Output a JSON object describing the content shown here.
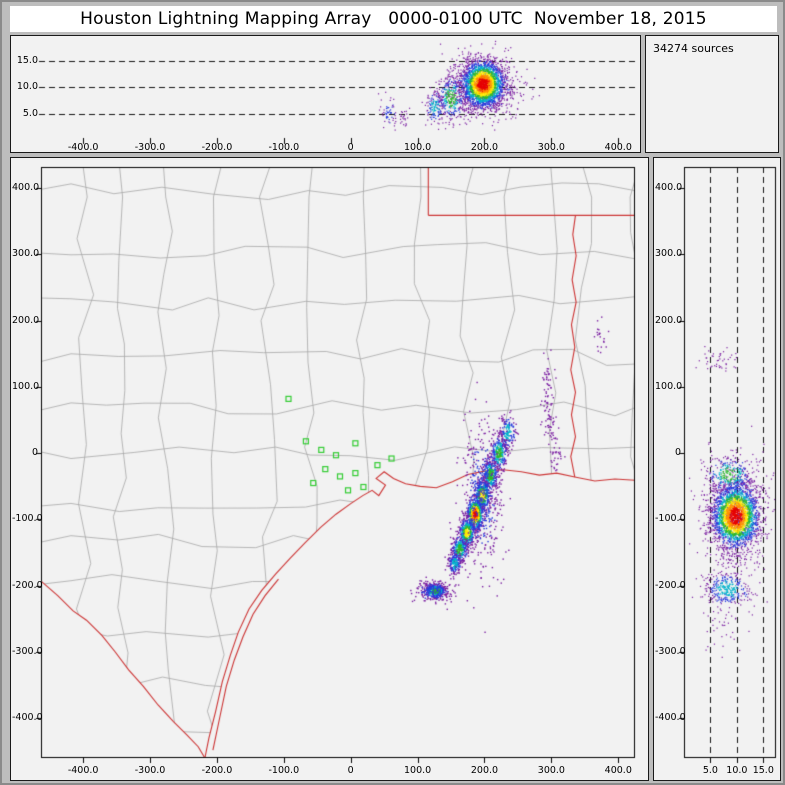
{
  "title": "Houston Lightning Mapping Array   0000-0100 UTC  November 18, 2015",
  "sources_label": "34274 sources",
  "colors": {
    "frame_bg": "#bdbdbd",
    "panel_bg": "#f2f2f2",
    "panel_border": "#1a1a1a",
    "grid_dash": "#111111",
    "county_line": "#a6a6a6",
    "state_line": "#cc3333",
    "station": "#33cc33",
    "tick_text": "#000000",
    "density_levels": [
      "#7b1fa2",
      "#2a3bdd",
      "#00b2cc",
      "#2db82d",
      "#ffeb00",
      "#ff9100",
      "#e60000"
    ]
  },
  "chart_data": [
    {
      "id": "altitude_vs_ew",
      "type": "scatter",
      "title": "",
      "x_range": [
        -463,
        425
      ],
      "y_range": [
        0,
        19
      ],
      "gridlines": [
        5,
        10,
        15
      ],
      "x_ticks": [
        {
          "v": -400,
          "label": "-400.0"
        },
        {
          "v": -300,
          "label": "-300.0"
        },
        {
          "v": -200,
          "label": "-200.0"
        },
        {
          "v": -100,
          "label": "-100.0"
        },
        {
          "v": 0,
          "label": "0"
        },
        {
          "v": 100,
          "label": "100.0"
        },
        {
          "v": 200,
          "label": "200.0"
        },
        {
          "v": 300,
          "label": "300.0"
        },
        {
          "v": 400,
          "label": "400.0"
        }
      ],
      "y_ticks": [
        {
          "v": 15,
          "label": "15.0"
        },
        {
          "v": 10,
          "label": "10.0"
        },
        {
          "v": 5,
          "label": "5.0"
        }
      ],
      "clusters": [
        {
          "x": 197,
          "y": 10.2,
          "sx": 28,
          "sy": 3.0,
          "n": 750,
          "peak": "blue"
        },
        {
          "x": 198,
          "y": 10.6,
          "sx": 16,
          "sy": 2.2,
          "n": 2300,
          "peak": "red"
        },
        {
          "x": 150,
          "y": 8.0,
          "sx": 10,
          "sy": 2.0,
          "n": 300,
          "peak": "green"
        },
        {
          "x": 126,
          "y": 6.2,
          "sx": 7,
          "sy": 1.6,
          "n": 130,
          "peak": "cyan"
        },
        {
          "x": 58,
          "y": 5.2,
          "sx": 7,
          "sy": 1.5,
          "n": 55,
          "peak": "blue"
        },
        {
          "x": 80,
          "y": 4.4,
          "sx": 4,
          "sy": 1.0,
          "n": 22,
          "peak": "purple"
        }
      ]
    },
    {
      "id": "plan_view",
      "type": "scatter",
      "title": "",
      "x_range": [
        -463,
        425
      ],
      "y_range": [
        -460,
        432
      ],
      "x_ticks": [
        {
          "v": -400,
          "label": "-400.0"
        },
        {
          "v": -300,
          "label": "-300.0"
        },
        {
          "v": -200,
          "label": "-200.0"
        },
        {
          "v": -100,
          "label": "-100.0"
        },
        {
          "v": 0,
          "label": "0"
        },
        {
          "v": 100,
          "label": "100.0"
        },
        {
          "v": 200,
          "label": "200.0"
        },
        {
          "v": 300,
          "label": "300.0"
        },
        {
          "v": 400,
          "label": "400.0"
        }
      ],
      "y_ticks": [
        {
          "v": 400,
          "label": "400.0"
        },
        {
          "v": 300,
          "label": "300.0"
        },
        {
          "v": 200,
          "label": "200.0"
        },
        {
          "v": 100,
          "label": "100.0"
        },
        {
          "v": 0,
          "label": "0"
        },
        {
          "v": -100,
          "label": "-100.0"
        },
        {
          "v": -200,
          "label": "-200.0"
        },
        {
          "v": -300,
          "label": "-300.0"
        },
        {
          "v": -400,
          "label": "-400.0"
        }
      ],
      "stations": [
        [
          -93,
          82
        ],
        [
          -67,
          18
        ],
        [
          -44,
          5
        ],
        [
          -22,
          -3
        ],
        [
          -38,
          -24
        ],
        [
          -16,
          -35
        ],
        [
          7,
          -30
        ],
        [
          -56,
          -45
        ],
        [
          -4,
          -56
        ],
        [
          19,
          -51
        ],
        [
          40,
          -18
        ],
        [
          61,
          -8
        ],
        [
          7,
          15
        ]
      ],
      "clusters": [
        {
          "x": 235,
          "y": 30,
          "sx": 6,
          "sy": 14,
          "n": 160,
          "peak": "cyan"
        },
        {
          "x": 222,
          "y": 0,
          "sx": 6,
          "sy": 13,
          "n": 240,
          "peak": "green"
        },
        {
          "x": 209,
          "y": -33,
          "sx": 6,
          "sy": 13,
          "n": 300,
          "peak": "green"
        },
        {
          "x": 197,
          "y": -64,
          "sx": 6,
          "sy": 12,
          "n": 400,
          "peak": "yellow"
        },
        {
          "x": 186,
          "y": -92,
          "sx": 6,
          "sy": 12,
          "n": 520,
          "peak": "red"
        },
        {
          "x": 174,
          "y": -120,
          "sx": 6,
          "sy": 11,
          "n": 380,
          "peak": "yellow"
        },
        {
          "x": 163,
          "y": -145,
          "sx": 6,
          "sy": 10,
          "n": 250,
          "peak": "green"
        },
        {
          "x": 155,
          "y": -166,
          "sx": 5,
          "sy": 9,
          "n": 150,
          "peak": "cyan"
        },
        {
          "x": 196,
          "y": -66,
          "sx": 15,
          "sy": 58,
          "n": 420,
          "peak": "blue"
        },
        {
          "x": 127,
          "y": -207,
          "sx": 5,
          "sy": 4,
          "n": 120,
          "peak": "yellow"
        },
        {
          "x": 126,
          "y": -208,
          "sx": 9,
          "sy": 6,
          "n": 260,
          "peak": "green"
        },
        {
          "x": 125,
          "y": -209,
          "sx": 14,
          "sy": 9,
          "n": 150,
          "peak": "blue"
        },
        {
          "x": 295,
          "y": 95,
          "sx": 4,
          "sy": 28,
          "n": 65,
          "peak": "purple"
        },
        {
          "x": 300,
          "y": 30,
          "sx": 4,
          "sy": 14,
          "n": 38,
          "peak": "purple"
        },
        {
          "x": 310,
          "y": -8,
          "sx": 5,
          "sy": 10,
          "n": 24,
          "peak": "purple"
        },
        {
          "x": 375,
          "y": 178,
          "sx": 6,
          "sy": 12,
          "n": 20,
          "peak": "purple"
        }
      ]
    },
    {
      "id": "altitude_vs_ns",
      "type": "scatter",
      "title": "",
      "x_range": [
        0,
        17.4
      ],
      "y_range": [
        -460,
        432
      ],
      "gridlines": [
        5,
        10,
        15
      ],
      "x_ticks": [
        {
          "v": 5,
          "label": "5.0"
        },
        {
          "v": 10,
          "label": "10.0"
        },
        {
          "v": 15,
          "label": "15.0"
        }
      ],
      "y_ticks": [
        {
          "v": 400,
          "label": "400.0"
        },
        {
          "v": 300,
          "label": "300.0"
        },
        {
          "v": 200,
          "label": "200.0"
        },
        {
          "v": 100,
          "label": "100.0"
        },
        {
          "v": 0,
          "label": "0"
        },
        {
          "v": -100,
          "label": "-100.0"
        },
        {
          "v": -200,
          "label": "-200.0"
        },
        {
          "v": -300,
          "label": "-300.0"
        },
        {
          "v": -400,
          "label": "-400.0"
        }
      ],
      "clusters": [
        {
          "x": 9.6,
          "y": -88,
          "sx": 3.0,
          "sy": 40,
          "n": 750,
          "peak": "blue"
        },
        {
          "x": 9.8,
          "y": -95,
          "sx": 2.2,
          "sy": 24,
          "n": 2300,
          "peak": "red"
        },
        {
          "x": 8.6,
          "y": -32,
          "sx": 2.2,
          "sy": 13,
          "n": 260,
          "peak": "green"
        },
        {
          "x": 8.2,
          "y": -205,
          "sx": 2.2,
          "sy": 13,
          "n": 330,
          "peak": "cyan"
        },
        {
          "x": 7.2,
          "y": 140,
          "sx": 1.6,
          "sy": 10,
          "n": 45,
          "peak": "purple"
        },
        {
          "x": 7.6,
          "y": -262,
          "sx": 2.2,
          "sy": 18,
          "n": 35,
          "peak": "purple"
        }
      ]
    }
  ],
  "map_features": {
    "coastline": [
      [
        -218,
        -460
      ],
      [
        -212,
        -430
      ],
      [
        -202,
        -390
      ],
      [
        -192,
        -345
      ],
      [
        -180,
        -305
      ],
      [
        -168,
        -270
      ],
      [
        -152,
        -235
      ],
      [
        -133,
        -207
      ],
      [
        -112,
        -182
      ],
      [
        -90,
        -158
      ],
      [
        -68,
        -135
      ],
      [
        -45,
        -112
      ],
      [
        -22,
        -92
      ],
      [
        0,
        -76
      ],
      [
        18,
        -64
      ],
      [
        32,
        -56
      ],
      [
        42,
        -64
      ],
      [
        52,
        -48
      ],
      [
        38,
        -38
      ],
      [
        50,
        -28
      ],
      [
        64,
        -38
      ],
      [
        82,
        -46
      ],
      [
        104,
        -50
      ],
      [
        128,
        -52
      ],
      [
        152,
        -43
      ],
      [
        175,
        -32
      ],
      [
        200,
        -27
      ],
      [
        228,
        -25
      ],
      [
        255,
        -28
      ],
      [
        282,
        -33
      ],
      [
        308,
        -30
      ],
      [
        335,
        -36
      ],
      [
        365,
        -42
      ],
      [
        395,
        -39
      ],
      [
        430,
        -41
      ]
    ],
    "mexico_border": [
      [
        -463,
        -193
      ],
      [
        -438,
        -215
      ],
      [
        -415,
        -238
      ],
      [
        -395,
        -252
      ],
      [
        -372,
        -275
      ],
      [
        -352,
        -300
      ],
      [
        -332,
        -327
      ],
      [
        -310,
        -352
      ],
      [
        -288,
        -380
      ],
      [
        -265,
        -405
      ],
      [
        -245,
        -425
      ],
      [
        -228,
        -443
      ],
      [
        -218,
        -460
      ]
    ],
    "barrier_island": [
      [
        -206,
        -448
      ],
      [
        -196,
        -400
      ],
      [
        -186,
        -352
      ],
      [
        -174,
        -312
      ],
      [
        -161,
        -277
      ],
      [
        -146,
        -243
      ],
      [
        -128,
        -215
      ],
      [
        -108,
        -190
      ]
    ],
    "la_border": [
      [
        335,
        -36
      ],
      [
        329,
        -5
      ],
      [
        336,
        25
      ],
      [
        330,
        58
      ],
      [
        336,
        92
      ],
      [
        329,
        126
      ],
      [
        335,
        160
      ],
      [
        330,
        194
      ],
      [
        337,
        228
      ],
      [
        331,
        262
      ],
      [
        337,
        298
      ],
      [
        332,
        330
      ],
      [
        336,
        359
      ]
    ],
    "red_river": [
      [
        116,
        359
      ],
      [
        450,
        359
      ]
    ],
    "state_corner": [
      [
        116,
        432
      ],
      [
        116,
        359
      ]
    ]
  }
}
